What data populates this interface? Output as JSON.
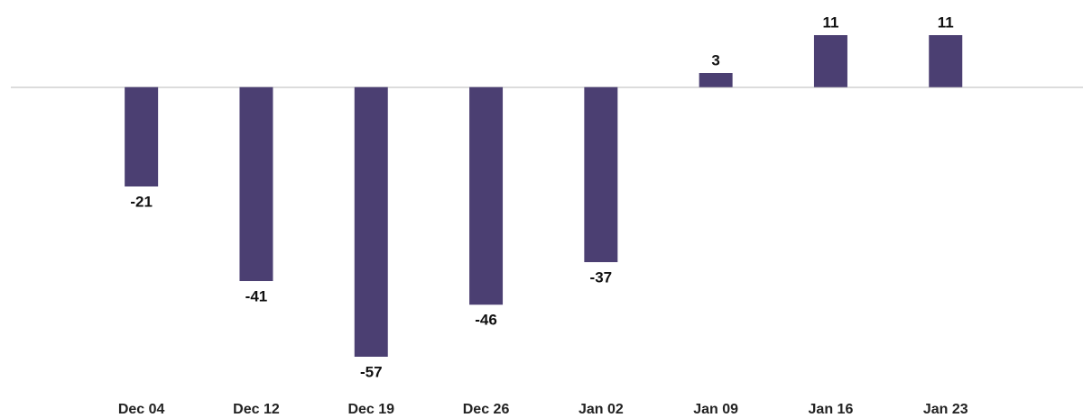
{
  "chart_data": {
    "type": "bar",
    "categories": [
      "Dec 04",
      "Dec 12",
      "Dec 19",
      "Dec 26",
      "Jan 02",
      "Jan 09",
      "Jan 16",
      "Jan 23"
    ],
    "values": [
      -21,
      -41,
      -57,
      -46,
      -37,
      3,
      11,
      11
    ],
    "color": "#4b3f72"
  }
}
